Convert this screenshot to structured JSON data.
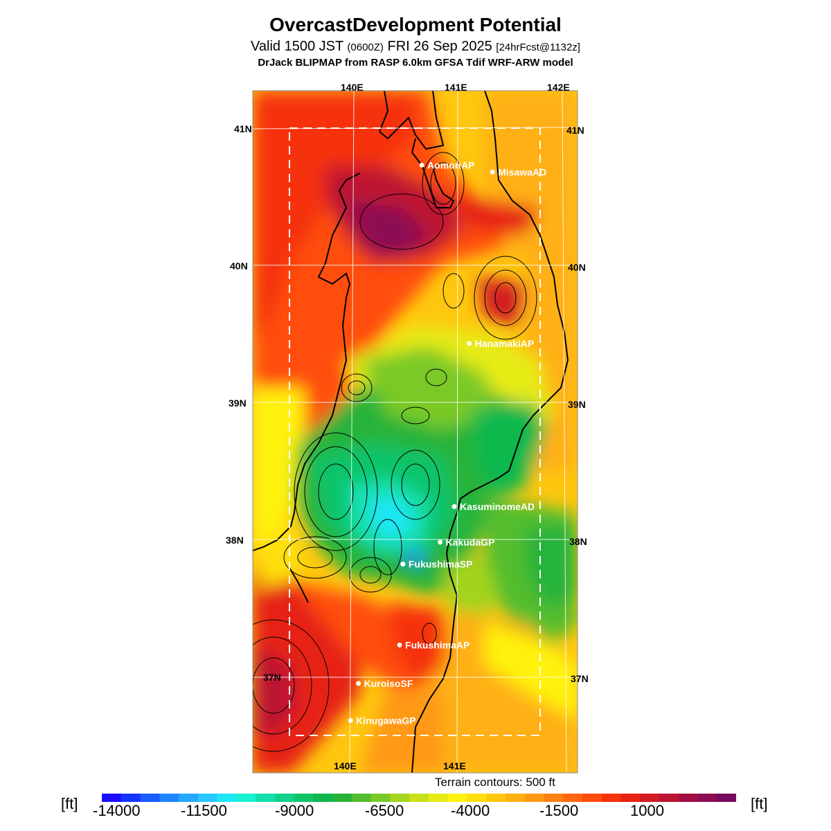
{
  "header": {
    "title": "OvercastDevelopment Potential",
    "valid_main": "Valid 1500 JST",
    "valid_zulu": "(0600Z)",
    "valid_date": "FRI 26 Sep 2025",
    "forecast": "[24hrFcst@1132z]",
    "model_line": "DrJack BLIPMAP from RASP 6.0km GFSA Tdif WRF-ARW model"
  },
  "map": {
    "lon_labels_top": [
      "140E",
      "141E",
      "142E"
    ],
    "lon_labels_bottom": [
      "140E",
      "141E"
    ],
    "lat_labels_left": [
      "41N",
      "40N",
      "39N",
      "38N",
      "37N"
    ],
    "lat_labels_right": [
      "41N",
      "40N",
      "39N",
      "38N",
      "37N"
    ],
    "stations": [
      {
        "name": "AomoriAP",
        "lon": 140.69,
        "lat": 40.73
      },
      {
        "name": "MisawaAD",
        "lon": 141.37,
        "lat": 40.68
      },
      {
        "name": "HanamakiAP",
        "lon": 141.13,
        "lat": 39.43
      },
      {
        "name": "KasuminomeAD",
        "lon": 140.97,
        "lat": 38.24
      },
      {
        "name": "KakudaGP",
        "lon": 140.83,
        "lat": 37.98
      },
      {
        "name": "FukushimaSP",
        "lon": 140.47,
        "lat": 37.82
      },
      {
        "name": "FukushimaAP",
        "lon": 140.43,
        "lat": 37.23
      },
      {
        "name": "KuroisoSF",
        "lon": 140.03,
        "lat": 36.95
      },
      {
        "name": "KinugawaGP",
        "lon": 139.95,
        "lat": 36.68
      }
    ],
    "terrain_note": "Terrain contours: 500 ft"
  },
  "colorbar": {
    "unit": "[ft]",
    "tick_labels": [
      "-14000",
      "-11500",
      "-9000",
      "-6500",
      "-4000",
      "-1500",
      "1000"
    ],
    "colors": [
      "#1a0dff",
      "#1433ff",
      "#1a5cff",
      "#1f85ff",
      "#24a8ff",
      "#26c8ff",
      "#1fe6f5",
      "#17f0d2",
      "#14e0ad",
      "#12d18a",
      "#10c46a",
      "#0fb84d",
      "#27b33a",
      "#52bd2e",
      "#7ac926",
      "#a3d41f",
      "#c8e01a",
      "#e6eb14",
      "#fff20f",
      "#ffdf0d",
      "#ffc70f",
      "#ffb012",
      "#ff9914",
      "#ff8012",
      "#ff660f",
      "#ff4d0d",
      "#f5330d",
      "#e62214",
      "#d11a24",
      "#bd1433",
      "#a30f42",
      "#8c0d52",
      "#750a5e"
    ]
  }
}
